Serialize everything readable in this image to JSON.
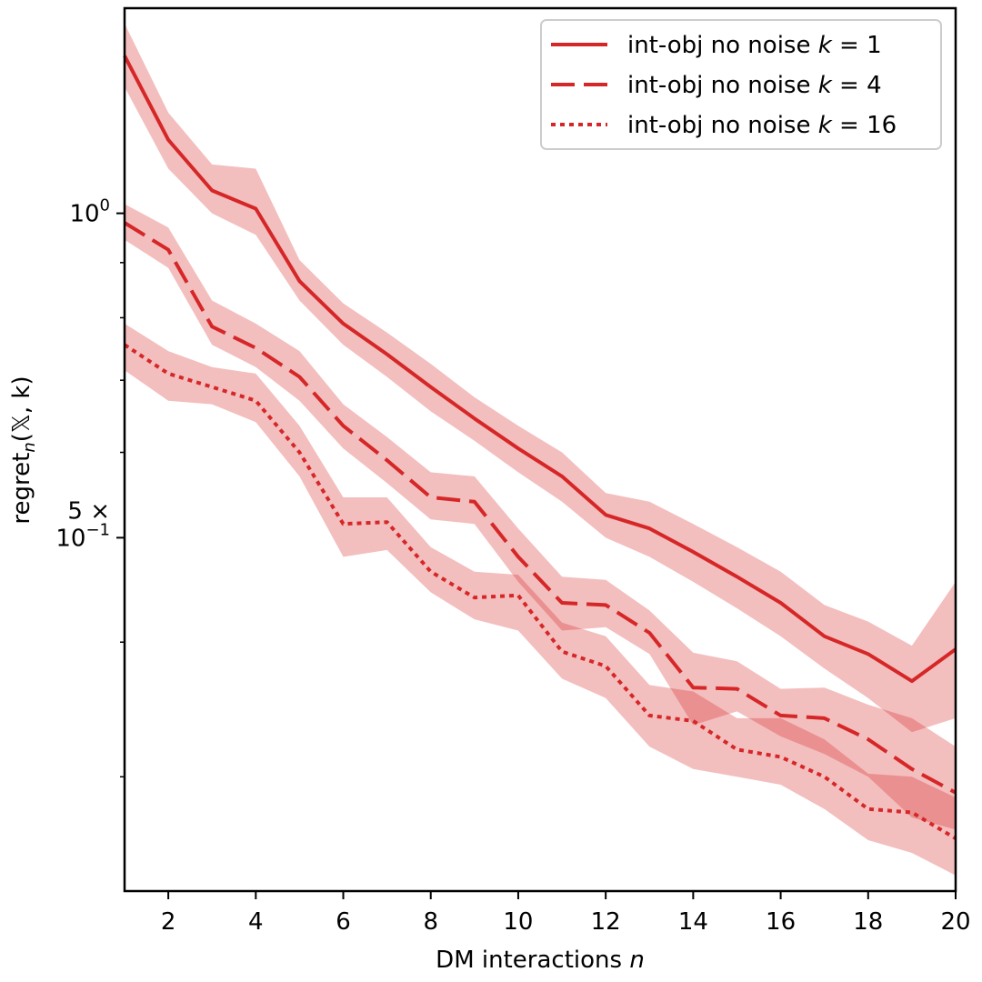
{
  "chart_data": {
    "type": "line",
    "title": "",
    "xlabel": "DM interactions n",
    "ylabel": "regret_n(X, k)",
    "yscale": "log",
    "xlim": [
      1,
      20
    ],
    "ylim": [
      0.235,
      1.55
    ],
    "x": [
      1,
      2,
      3,
      4,
      5,
      6,
      7,
      8,
      9,
      10,
      11,
      12,
      13,
      14,
      15,
      16,
      17,
      18,
      19,
      20
    ],
    "x_ticks": [
      2,
      4,
      6,
      8,
      10,
      12,
      14,
      16,
      18,
      20
    ],
    "y_tick_labels": [
      {
        "value": 1.0,
        "lines": [
          "10^0"
        ]
      },
      {
        "value": 0.5,
        "lines": [
          "5 ×",
          "10^-1"
        ]
      }
    ],
    "y_minor_ticks": [
      0.3,
      0.4,
      0.6,
      0.7,
      0.8,
      0.9
    ],
    "series": [
      {
        "name": "int-obj no noise k = 1",
        "label_prefix": "int-obj no noise ",
        "label_k": "k",
        "label_value": "= 1",
        "line_style": "solid",
        "values": [
          1.4,
          1.17,
          1.05,
          1.01,
          0.865,
          0.79,
          0.74,
          0.69,
          0.645,
          0.605,
          0.57,
          0.525,
          0.51,
          0.485,
          0.46,
          0.435,
          0.405,
          0.39,
          0.368,
          0.394
        ],
        "lower": [
          1.31,
          1.1,
          1.0,
          0.955,
          0.83,
          0.755,
          0.705,
          0.655,
          0.615,
          0.575,
          0.54,
          0.5,
          0.48,
          0.455,
          0.43,
          0.405,
          0.378,
          0.355,
          0.33,
          0.34
        ],
        "upper": [
          1.5,
          1.24,
          1.11,
          1.1,
          0.905,
          0.825,
          0.775,
          0.725,
          0.675,
          0.635,
          0.6,
          0.55,
          0.54,
          0.515,
          0.49,
          0.465,
          0.433,
          0.418,
          0.397,
          0.455
        ]
      },
      {
        "name": "int-obj no noise k = 4",
        "label_prefix": "int-obj no noise ",
        "label_k": "k",
        "label_value": "= 4",
        "line_style": "dashed",
        "values": [
          0.98,
          0.925,
          0.785,
          0.75,
          0.705,
          0.635,
          0.59,
          0.545,
          0.54,
          0.48,
          0.435,
          0.433,
          0.408,
          0.363,
          0.362,
          0.342,
          0.34,
          0.325,
          0.305,
          0.29
        ],
        "lower": [
          0.945,
          0.89,
          0.755,
          0.72,
          0.67,
          0.605,
          0.562,
          0.52,
          0.515,
          0.455,
          0.41,
          0.413,
          0.39,
          0.335,
          0.345,
          0.327,
          0.315,
          0.3,
          0.275,
          0.268
        ],
        "upper": [
          1.02,
          0.97,
          0.83,
          0.79,
          0.745,
          0.665,
          0.62,
          0.575,
          0.57,
          0.51,
          0.46,
          0.457,
          0.428,
          0.391,
          0.384,
          0.362,
          0.363,
          0.35,
          0.34,
          0.32
        ]
      },
      {
        "name": "int-obj no noise k = 16",
        "label_prefix": "int-obj no noise ",
        "label_k": "k",
        "label_value": "= 16",
        "line_style": "dotted",
        "values": [
          0.755,
          0.71,
          0.69,
          0.67,
          0.6,
          0.515,
          0.517,
          0.465,
          0.44,
          0.442,
          0.392,
          0.38,
          0.342,
          0.338,
          0.318,
          0.313,
          0.3,
          0.28,
          0.278,
          0.263
        ],
        "lower": [
          0.715,
          0.67,
          0.665,
          0.64,
          0.57,
          0.48,
          0.487,
          0.445,
          0.42,
          0.41,
          0.37,
          0.355,
          0.32,
          0.305,
          0.3,
          0.295,
          0.28,
          0.262,
          0.255,
          0.243
        ],
        "upper": [
          0.79,
          0.745,
          0.72,
          0.71,
          0.635,
          0.545,
          0.545,
          0.49,
          0.465,
          0.462,
          0.417,
          0.405,
          0.365,
          0.36,
          0.34,
          0.34,
          0.325,
          0.302,
          0.3,
          0.287
        ]
      }
    ],
    "colors": {
      "line": "#d62728",
      "band": "#d62728",
      "band_opacity": 0.3,
      "legend_border": "#cccccc"
    },
    "legend_position": "top-right",
    "grid": false
  }
}
